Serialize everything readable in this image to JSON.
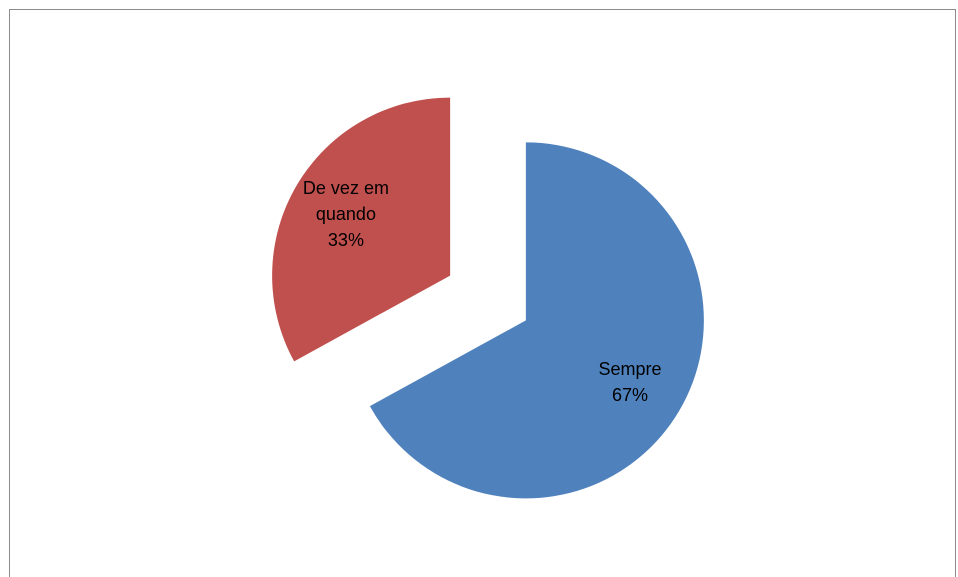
{
  "chart_data": {
    "type": "pie",
    "categories": [
      "Sempre",
      "De vez em quando"
    ],
    "values": [
      67,
      33
    ],
    "value_labels": [
      "67%",
      "33%"
    ],
    "colors": [
      "#4f81bd",
      "#c0504d"
    ],
    "start_angle": 0,
    "exploded": true
  }
}
